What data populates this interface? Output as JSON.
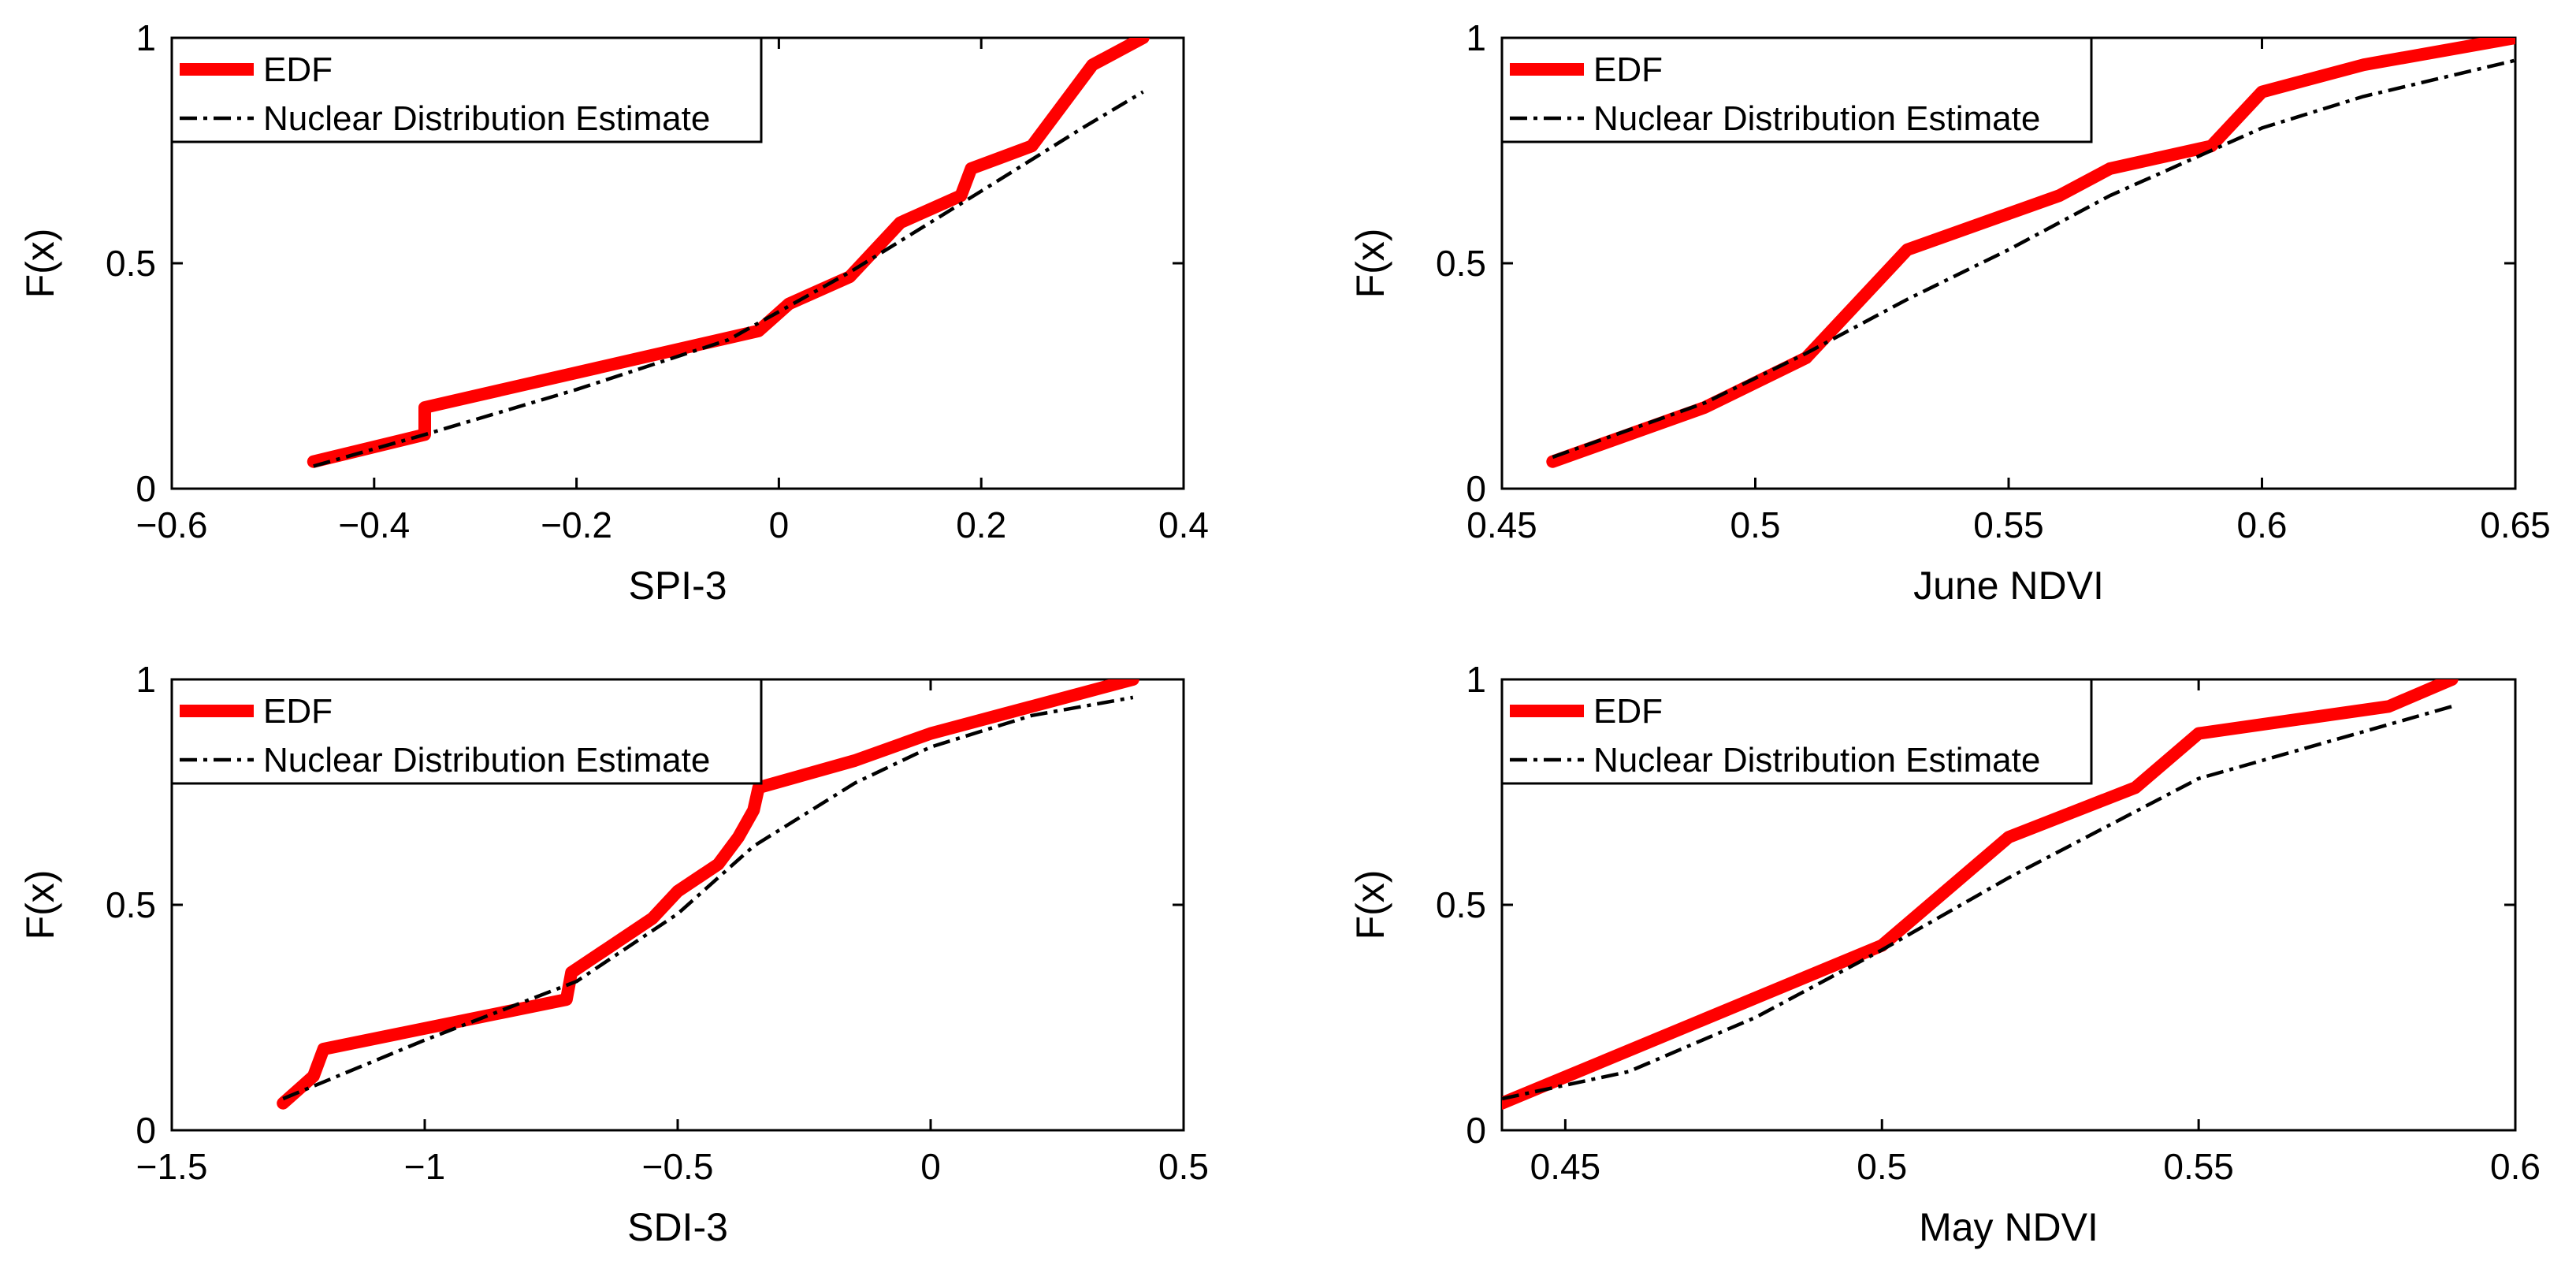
{
  "colors": {
    "edf": "#ff0000",
    "nde": "#000000",
    "axis": "#000000",
    "background": "#ffffff"
  },
  "chart_data": [
    {
      "type": "line",
      "xlabel": "SPI-3",
      "ylabel": "F(x)",
      "xlim": [
        -0.6,
        0.4
      ],
      "ylim": [
        0,
        1
      ],
      "xticks": [
        -0.6,
        -0.4,
        -0.2,
        0,
        0.2,
        0.4
      ],
      "xtick_labels": [
        "−0.6",
        "−0.4",
        "−0.2",
        "0",
        "0.2",
        "0.4"
      ],
      "yticks": [
        0,
        0.5,
        1
      ],
      "ytick_labels": [
        "0",
        "0.5",
        "1"
      ],
      "legend": {
        "position": "top-left",
        "entries": [
          "EDF",
          "Nuclear Distribution Estimate"
        ]
      },
      "series": [
        {
          "name": "EDF",
          "style": "solid-thick-red",
          "x": [
            -0.46,
            -0.35,
            -0.35,
            -0.02,
            0.01,
            0.07,
            0.12,
            0.18,
            0.19,
            0.25,
            0.31,
            0.36
          ],
          "y": [
            0.06,
            0.12,
            0.18,
            0.35,
            0.41,
            0.47,
            0.59,
            0.65,
            0.71,
            0.76,
            0.94,
            1.0
          ]
        },
        {
          "name": "Nuclear Distribution Estimate",
          "style": "dashdot-thin-black",
          "x": [
            -0.46,
            -0.35,
            -0.2,
            -0.05,
            0.07,
            0.2,
            0.3,
            0.36
          ],
          "y": [
            0.05,
            0.12,
            0.22,
            0.33,
            0.48,
            0.66,
            0.8,
            0.88
          ]
        }
      ]
    },
    {
      "type": "line",
      "xlabel": "June NDVI",
      "ylabel": "F(x)",
      "xlim": [
        0.45,
        0.65
      ],
      "ylim": [
        0,
        1
      ],
      "xticks": [
        0.45,
        0.5,
        0.55,
        0.6,
        0.65
      ],
      "xtick_labels": [
        "0.45",
        "0.5",
        "0.55",
        "0.6",
        "0.65"
      ],
      "yticks": [
        0,
        0.5,
        1
      ],
      "ytick_labels": [
        "0",
        "0.5",
        "1"
      ],
      "legend": {
        "position": "top-left",
        "entries": [
          "EDF",
          "Nuclear Distribution Estimate"
        ]
      },
      "series": [
        {
          "name": "EDF",
          "style": "solid-thick-red",
          "x": [
            0.46,
            0.49,
            0.51,
            0.53,
            0.56,
            0.57,
            0.59,
            0.6,
            0.62,
            0.65
          ],
          "y": [
            0.06,
            0.18,
            0.29,
            0.53,
            0.65,
            0.71,
            0.76,
            0.88,
            0.94,
            1.0
          ]
        },
        {
          "name": "Nuclear Distribution Estimate",
          "style": "dashdot-thin-black",
          "x": [
            0.46,
            0.49,
            0.51,
            0.53,
            0.55,
            0.57,
            0.6,
            0.62,
            0.65
          ],
          "y": [
            0.07,
            0.19,
            0.3,
            0.42,
            0.53,
            0.65,
            0.8,
            0.87,
            0.95
          ]
        }
      ]
    },
    {
      "type": "line",
      "xlabel": "SDI-3",
      "ylabel": "F(x)",
      "xlim": [
        -1.5,
        0.5
      ],
      "ylim": [
        0,
        1
      ],
      "xticks": [
        -1.5,
        -1,
        -0.5,
        0,
        0.5
      ],
      "xtick_labels": [
        "−1.5",
        "−1",
        "−0.5",
        "0",
        "0.5"
      ],
      "yticks": [
        0,
        0.5,
        1
      ],
      "ytick_labels": [
        "0",
        "0.5",
        "1"
      ],
      "legend": {
        "position": "top-left",
        "entries": [
          "EDF",
          "Nuclear Distribution Estimate"
        ]
      },
      "series": [
        {
          "name": "EDF",
          "style": "solid-thick-red",
          "x": [
            -1.28,
            -1.22,
            -1.2,
            -0.72,
            -0.71,
            -0.55,
            -0.5,
            -0.42,
            -0.38,
            -0.35,
            -0.34,
            -0.15,
            0.0,
            0.2,
            0.4
          ],
          "y": [
            0.06,
            0.12,
            0.18,
            0.29,
            0.35,
            0.47,
            0.53,
            0.59,
            0.65,
            0.71,
            0.76,
            0.82,
            0.88,
            0.94,
            1.0
          ]
        },
        {
          "name": "Nuclear Distribution Estimate",
          "style": "dashdot-thin-black",
          "x": [
            -1.28,
            -1.0,
            -0.7,
            -0.5,
            -0.35,
            -0.15,
            0.0,
            0.2,
            0.4
          ],
          "y": [
            0.07,
            0.2,
            0.33,
            0.48,
            0.63,
            0.77,
            0.85,
            0.92,
            0.96
          ]
        }
      ]
    },
    {
      "type": "line",
      "xlabel": "May NDVI",
      "ylabel": "F(x)",
      "xlim": [
        0.44,
        0.6
      ],
      "ylim": [
        0,
        1
      ],
      "xticks": [
        0.45,
        0.5,
        0.55,
        0.6
      ],
      "xtick_labels": [
        "0.45",
        "0.5",
        "0.55",
        "0.6"
      ],
      "yticks": [
        0,
        0.5,
        1
      ],
      "ytick_labels": [
        "0",
        "0.5",
        "1"
      ],
      "legend": {
        "position": "top-left",
        "entries": [
          "EDF",
          "Nuclear Distribution Estimate"
        ]
      },
      "series": [
        {
          "name": "EDF",
          "style": "solid-thick-red",
          "x": [
            0.44,
            0.5,
            0.52,
            0.54,
            0.55,
            0.58,
            0.59
          ],
          "y": [
            0.06,
            0.41,
            0.65,
            0.76,
            0.88,
            0.94,
            1.0
          ]
        },
        {
          "name": "Nuclear Distribution Estimate",
          "style": "dashdot-thin-black",
          "x": [
            0.44,
            0.46,
            0.48,
            0.5,
            0.52,
            0.55,
            0.58,
            0.59
          ],
          "y": [
            0.07,
            0.13,
            0.25,
            0.4,
            0.56,
            0.78,
            0.9,
            0.94
          ]
        }
      ]
    }
  ]
}
